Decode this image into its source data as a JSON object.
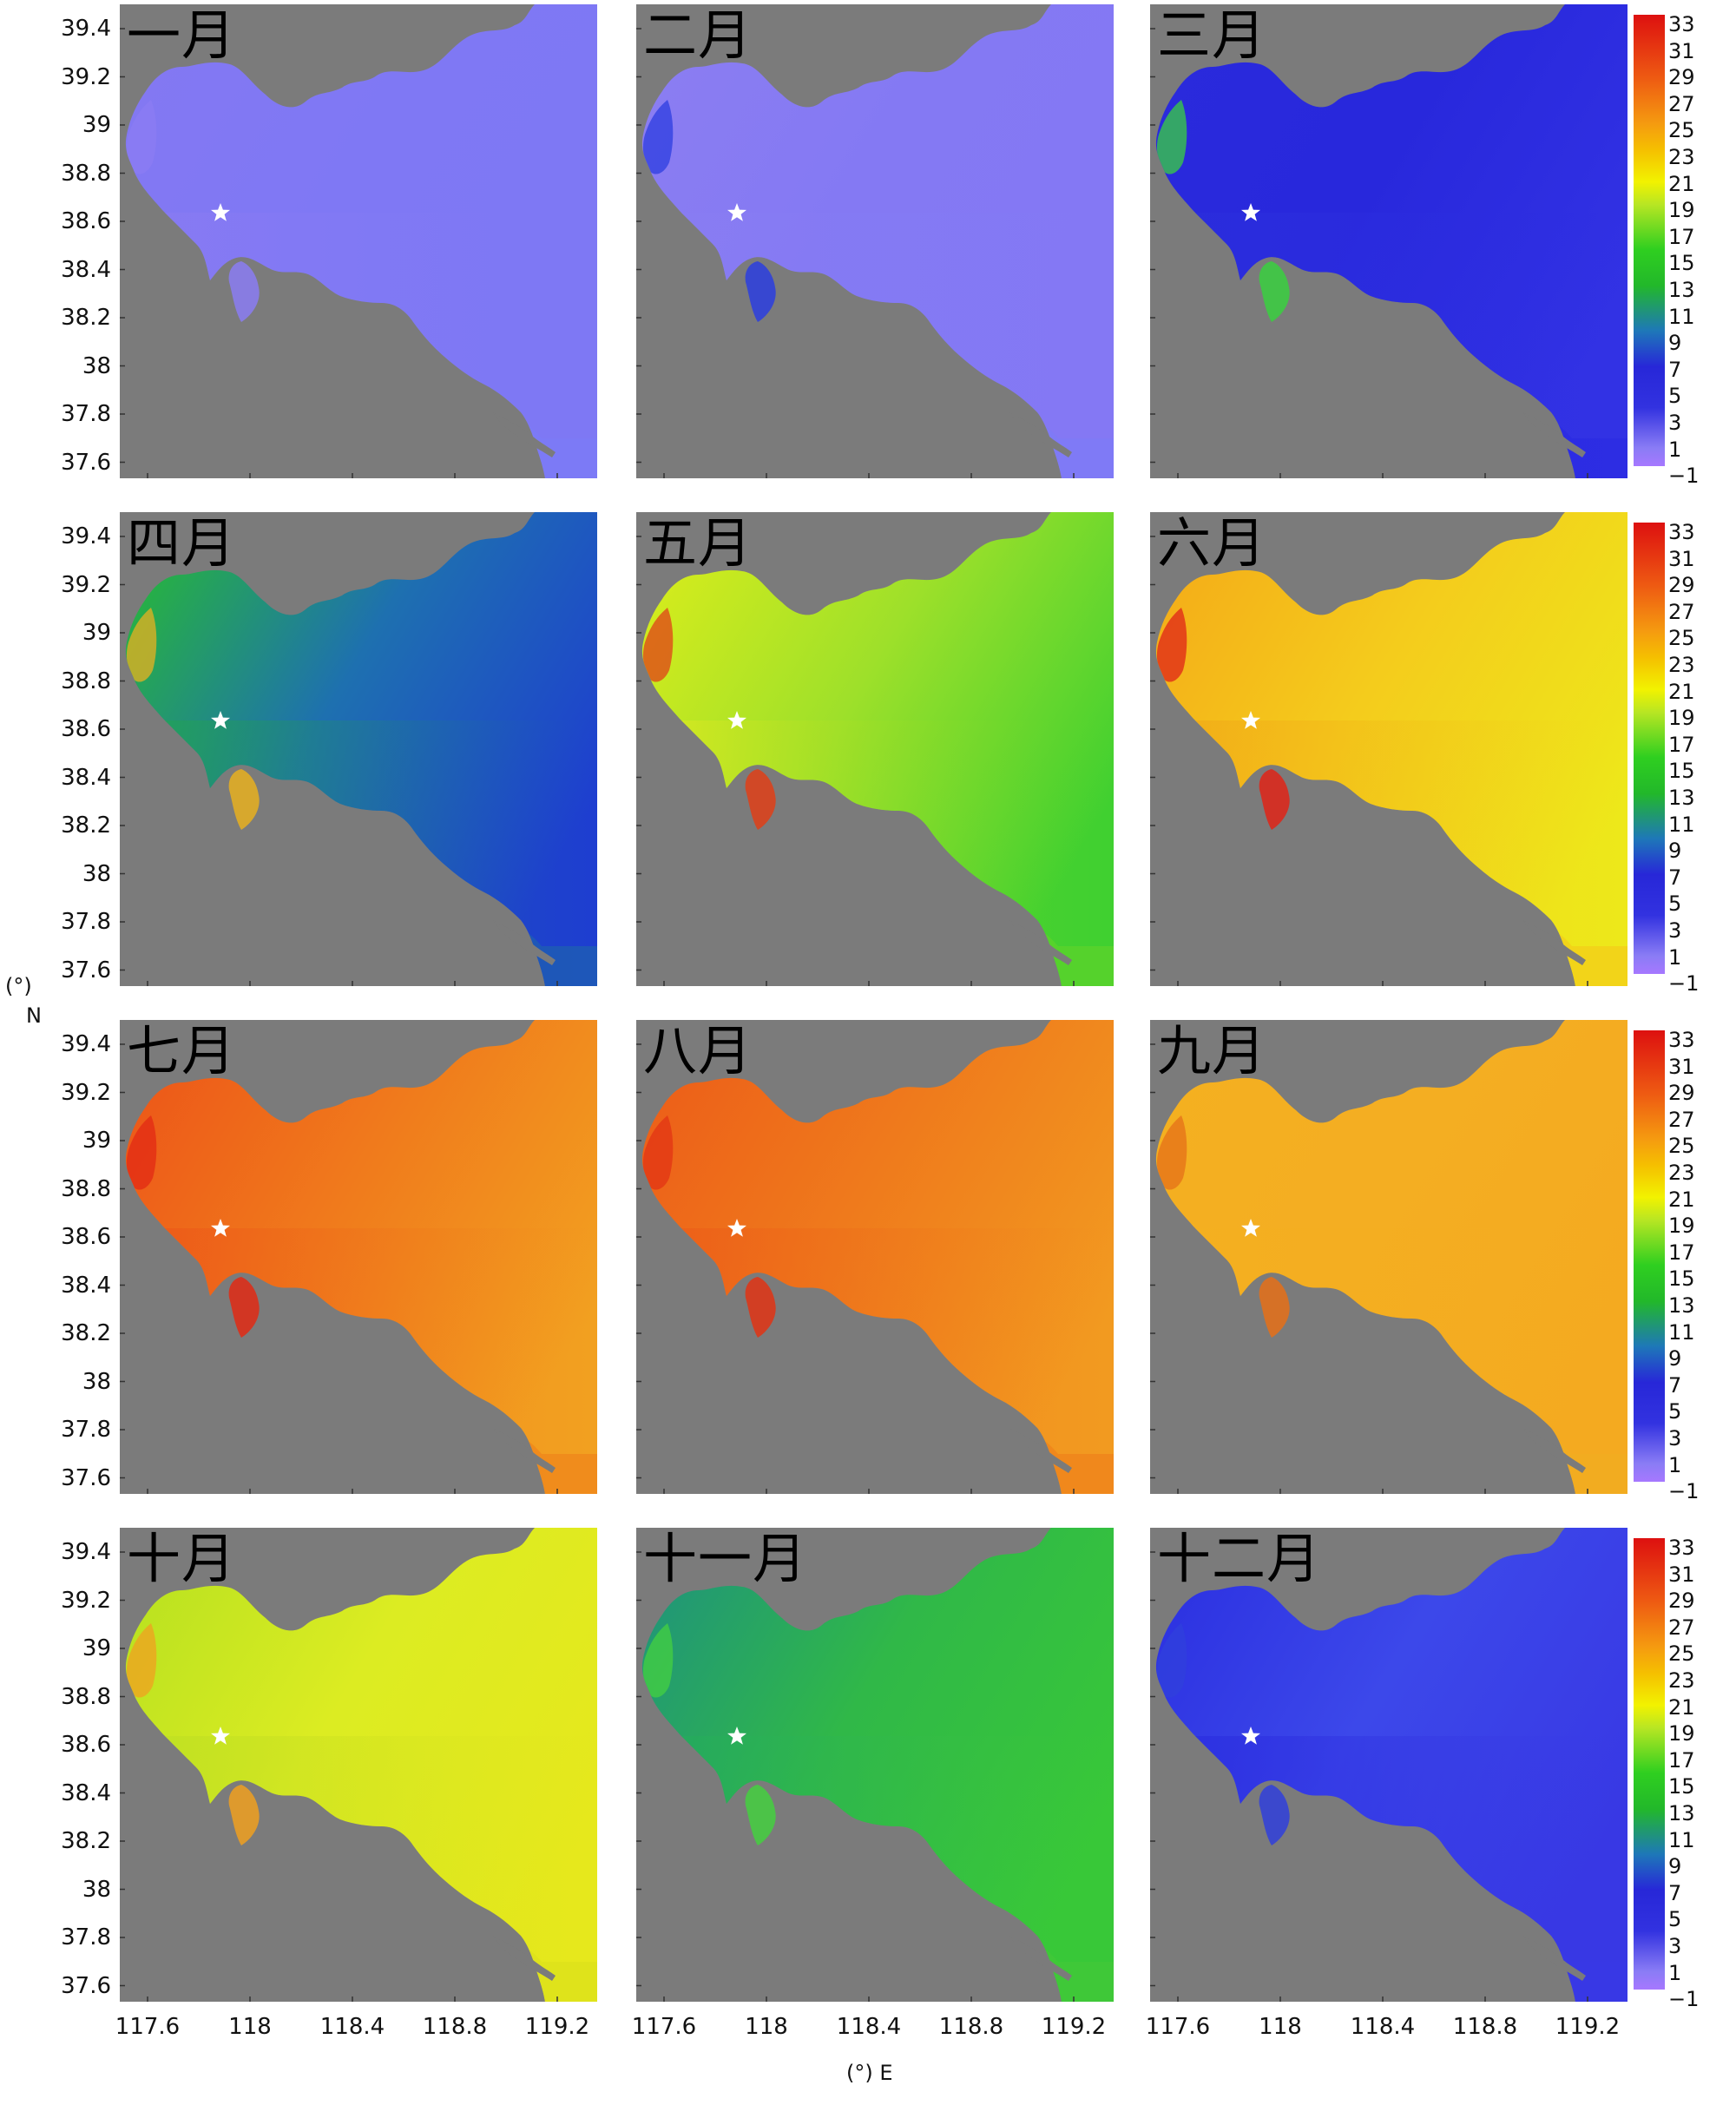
{
  "months": [
    {
      "label": "一月",
      "colors": {
        "tl": "#8478f2",
        "tr": "#7e78f4",
        "bl": "#8a7af2",
        "br": "#7c7af6",
        "mid": "#7f78f4",
        "edge": "#8b7cf3"
      }
    },
    {
      "label": "二月",
      "colors": {
        "tl": "#8c7ef2",
        "tr": "#8478f4",
        "bl": "#8a7cf2",
        "br": "#7e7af6",
        "mid": "#8479f3",
        "edge": "#2c3ee0"
      }
    },
    {
      "label": "三月",
      "colors": {
        "tl": "#2a2adc",
        "tr": "#3232e4",
        "bl": "#2b2edc",
        "br": "#2c2ce2",
        "mid": "#2828dc",
        "edge": "#3ad040"
      }
    },
    {
      "label": "四月",
      "colors": {
        "tl": "#29c02a",
        "tr": "#1e3ed0",
        "bl": "#22a850",
        "br": "#1e5ab6",
        "mid": "#1e70b0",
        "edge": "#e8b020"
      }
    },
    {
      "label": "五月",
      "colors": {
        "tl": "#dfee1a",
        "tr": "#40d030",
        "bl": "#e2ea20",
        "br": "#58d22c",
        "mid": "#9ee02a",
        "edge": "#e04018"
      }
    },
    {
      "label": "六月",
      "colors": {
        "tl": "#f4a818",
        "tr": "#ede81a",
        "bl": "#f2a818",
        "br": "#f2d21a",
        "mid": "#f4cc1c",
        "edge": "#e02418"
      }
    },
    {
      "label": "七月",
      "colors": {
        "tl": "#ec5218",
        "tr": "#f2a020",
        "bl": "#ec5418",
        "br": "#f08a1c",
        "mid": "#f07a1c",
        "edge": "#e22a14"
      }
    },
    {
      "label": "八月",
      "colors": {
        "tl": "#ec5a18",
        "tr": "#f29a20",
        "bl": "#ec5a18",
        "br": "#f0861c",
        "mid": "#ef7a1c",
        "edge": "#e23414"
      }
    },
    {
      "label": "九月",
      "colors": {
        "tl": "#f4b020",
        "tr": "#f4aa20",
        "bl": "#f4b020",
        "br": "#f2ac20",
        "mid": "#f4ae22",
        "edge": "#e67018"
      }
    },
    {
      "label": "十月",
      "colors": {
        "tl": "#b4e020",
        "tr": "#e6e81c",
        "bl": "#bce024",
        "br": "#dee21c",
        "mid": "#dcec22",
        "edge": "#f0a020"
      }
    },
    {
      "label": "十一月",
      "colors": {
        "tl": "#1e9080",
        "tr": "#38c838",
        "bl": "#22a860",
        "br": "#40c838",
        "mid": "#30b848",
        "edge": "#44d040"
      }
    },
    {
      "label": "十二月",
      "colors": {
        "tl": "#2a2ee0",
        "tr": "#3838e4",
        "bl": "#2a2ee0",
        "br": "#3838e4",
        "mid": "#3c48ea",
        "edge": "#3040dc"
      }
    }
  ],
  "latitude_ticks": [
    "39.4",
    "39.2",
    "39",
    "38.8",
    "38.6",
    "38.4",
    "38.2",
    "38",
    "37.8",
    "37.6"
  ],
  "longitude_ticks": [
    "117.6",
    "118",
    "118.4",
    "118.8",
    "119.2"
  ],
  "colorbar_ticks": [
    "33",
    "31",
    "29",
    "27",
    "25",
    "23",
    "21",
    "19",
    "17",
    "15",
    "13",
    "11",
    "9",
    "7",
    "5",
    "3",
    "1",
    "−1"
  ],
  "axis": {
    "y_unit": "(°)",
    "y_letter": "N",
    "x_title": "(°) E"
  },
  "colors": {
    "land": "#7b7b7b",
    "star": "#ffffff"
  }
}
